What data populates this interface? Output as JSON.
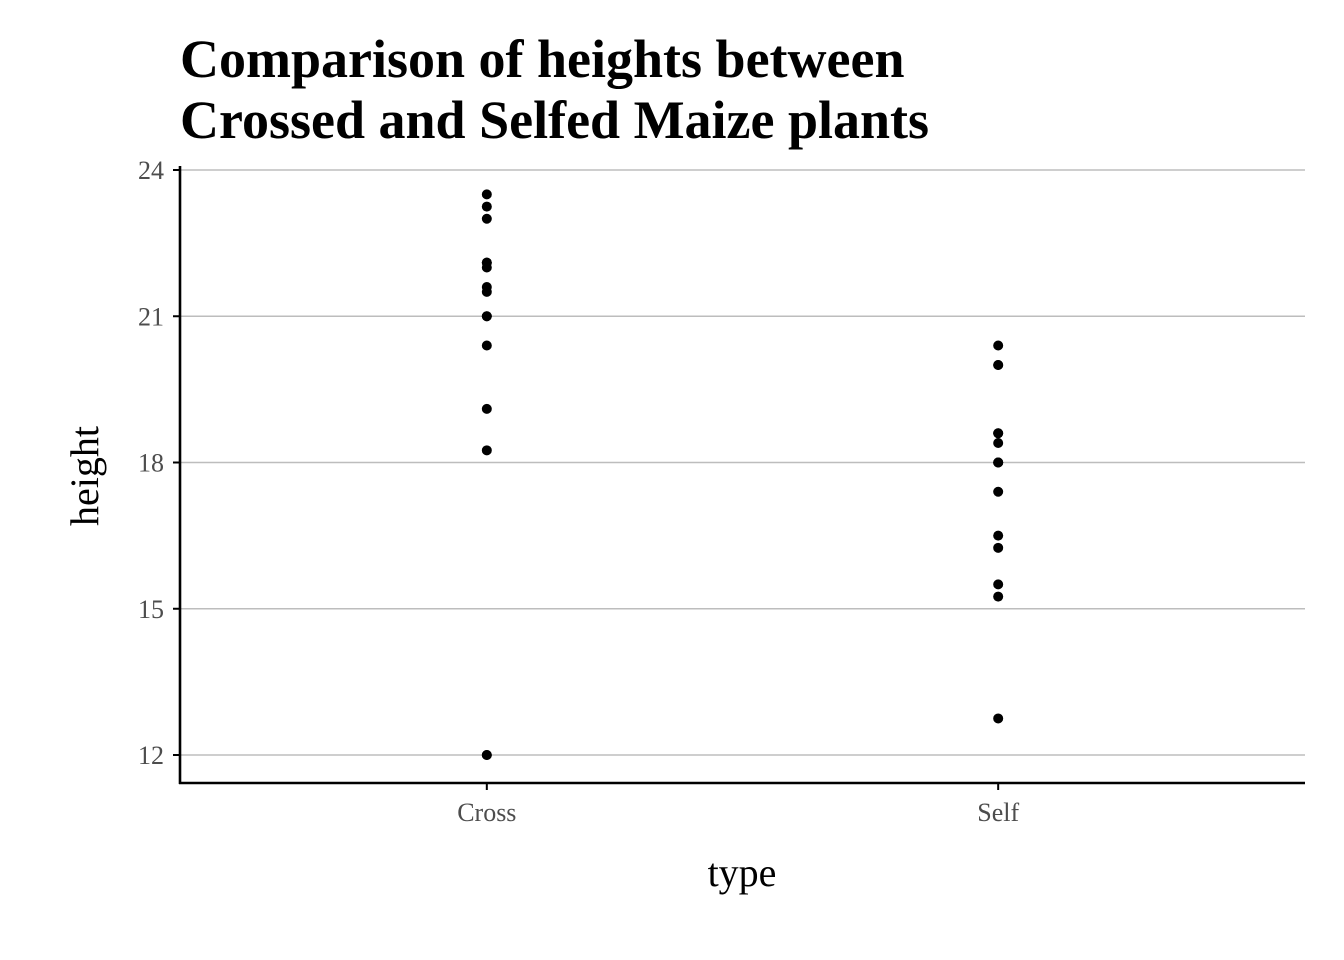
{
  "chart_data": {
    "type": "scatter",
    "title": [
      "Comparison of heights between",
      "Crossed and Selfed Maize plants"
    ],
    "xlabel": "type",
    "ylabel": "height",
    "categories": [
      "Cross",
      "Self"
    ],
    "ylim": [
      11.4,
      24.1
    ],
    "yticks": [
      "12",
      "15",
      "18",
      "21",
      "24"
    ],
    "grid": "horizontal major",
    "series": [
      {
        "category": "Cross",
        "values": [
          23.5,
          12.0,
          21.0,
          22.0,
          19.1,
          21.5,
          22.1,
          20.4,
          18.25,
          21.6,
          23.25,
          21.0,
          22.1,
          23.0,
          12.0
        ]
      },
      {
        "category": "Self",
        "values": [
          17.4,
          20.4,
          20.0,
          20.0,
          18.4,
          18.6,
          18.6,
          15.25,
          16.5,
          18.0,
          16.25,
          18.0,
          12.75,
          15.5,
          18.0
        ]
      }
    ],
    "colors": {
      "point": "#000000",
      "grid": "#bdbdbd",
      "axis": "#000000",
      "tick_label": "#4d4d4d"
    }
  }
}
